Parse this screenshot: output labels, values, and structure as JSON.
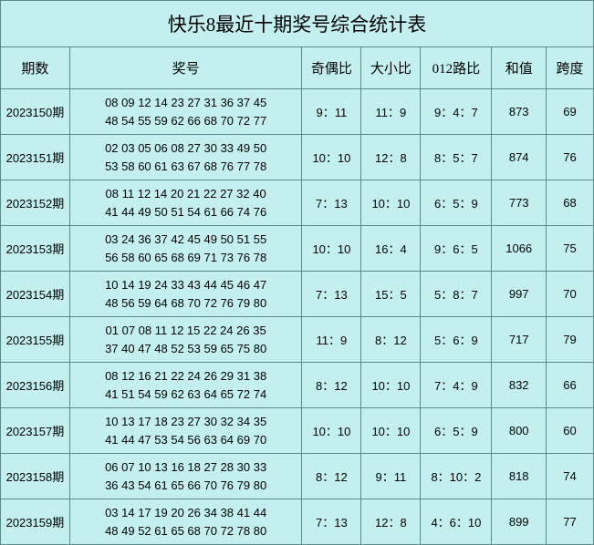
{
  "title": "快乐8最近十期奖号综合统计表",
  "background_color": "#c3f0ef",
  "border_color": "#5a8a8a",
  "text_color": "#000000",
  "title_fontsize": 21,
  "header_fontsize": 15,
  "cell_fontsize": 13,
  "columns": {
    "period": "期数",
    "numbers": "奖号",
    "odd_even": "奇偶比",
    "big_small": "大小比",
    "route_012": "012路比",
    "sum": "和值",
    "span": "跨度"
  },
  "rows": [
    {
      "period": "2023150期",
      "line1": "08 09 12 14 23 27 31 36 37 45",
      "line2": "48 54 55 59 62 66 68 70 72 77",
      "odd_even": "9：11",
      "big_small": "11：9",
      "route_012": "9：4：7",
      "sum": "873",
      "span": "69"
    },
    {
      "period": "2023151期",
      "line1": "02 03 05 06 08 27 30 33 49 50",
      "line2": "53 58 60 61 63 67 68 76 77 78",
      "odd_even": "10：10",
      "big_small": "12：8",
      "route_012": "8：5：7",
      "sum": "874",
      "span": "76"
    },
    {
      "period": "2023152期",
      "line1": "08 11 12 14 20 21 22 27 32 40",
      "line2": "41 44 49 50 51 54 61 66 74 76",
      "odd_even": "7：13",
      "big_small": "10：10",
      "route_012": "6：5：9",
      "sum": "773",
      "span": "68"
    },
    {
      "period": "2023153期",
      "line1": "03 24 36 37 42 45 49 50 51 55",
      "line2": "56 58 60 65 68 69 71 73 76 78",
      "odd_even": "10：10",
      "big_small": "16：4",
      "route_012": "9：6：5",
      "sum": "1066",
      "span": "75"
    },
    {
      "period": "2023154期",
      "line1": "10 14 19 24 33 43 44 45 46 47",
      "line2": "48 56 59 64 68 70 72 76 79 80",
      "odd_even": "7：13",
      "big_small": "15：5",
      "route_012": "5：8：7",
      "sum": "997",
      "span": "70"
    },
    {
      "period": "2023155期",
      "line1": "01 07 08 11 12 15 22 24 26 35",
      "line2": "37 40 47 48 52 53 59 65 75 80",
      "odd_even": "11：9",
      "big_small": "8：12",
      "route_012": "5：6：9",
      "sum": "717",
      "span": "79"
    },
    {
      "period": "2023156期",
      "line1": "08 12 16 21 22 24 26 29 31 38",
      "line2": "41 51 54 59 62 63 64 65 72 74",
      "odd_even": "8：12",
      "big_small": "10：10",
      "route_012": "7：4：9",
      "sum": "832",
      "span": "66"
    },
    {
      "period": "2023157期",
      "line1": "10 13 17 18 23 27 30 32 34 35",
      "line2": "41 44 47 53 54 56 63 64 69 70",
      "odd_even": "10：10",
      "big_small": "10：10",
      "route_012": "6：5：9",
      "sum": "800",
      "span": "60"
    },
    {
      "period": "2023158期",
      "line1": "06 07 10 13 16 18 27 28 30 33",
      "line2": "36 43 54 61 65 66 70 76 79 80",
      "odd_even": "8：12",
      "big_small": "9：11",
      "route_012": "8：10：2",
      "sum": "818",
      "span": "74"
    },
    {
      "period": "2023159期",
      "line1": "03 14 17 19 20 26 34 38 41 44",
      "line2": "48 49 52 61 65 68 70 72 78 80",
      "odd_even": "7：13",
      "big_small": "12：8",
      "route_012": "4：6：10",
      "sum": "899",
      "span": "77"
    }
  ]
}
